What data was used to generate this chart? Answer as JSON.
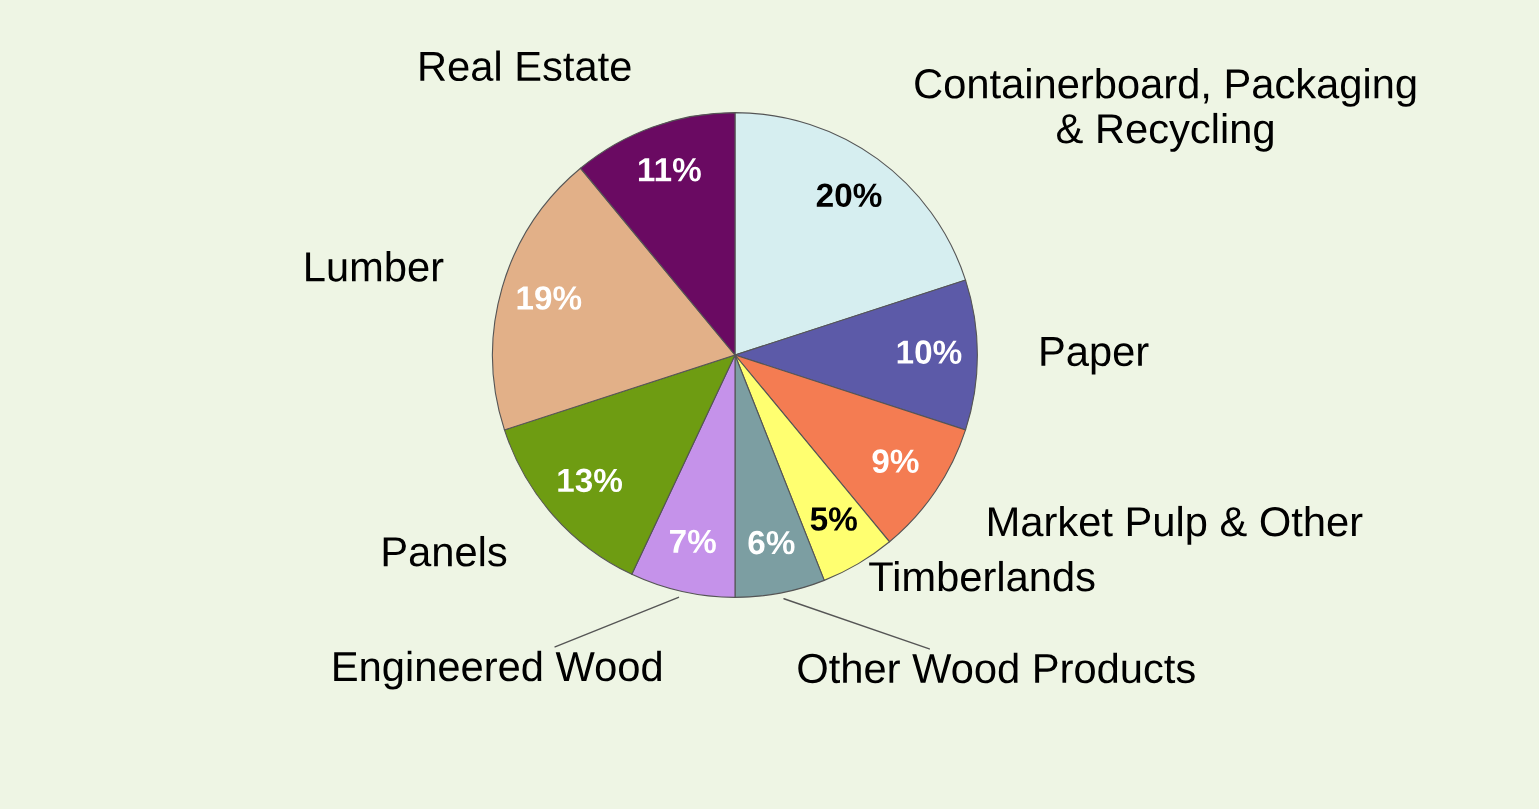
{
  "chart_data": {
    "type": "pie",
    "categories": [
      "Containerboard, Packaging\n& Recycling",
      "Paper",
      "Market Pulp & Other",
      "Timberlands",
      "Other Wood Products",
      "Engineered Wood",
      "Panels",
      "Lumber",
      "Real Estate"
    ],
    "values": [
      20,
      10,
      9,
      5,
      6,
      7,
      13,
      19,
      11
    ],
    "value_labels": [
      "20%",
      "10%",
      "9%",
      "5%",
      "6%",
      "7%",
      "13%",
      "19%",
      "11%"
    ],
    "colors": [
      "#d6eef0",
      "#5c5aa8",
      "#f47c52",
      "#ffff70",
      "#7c9ea2",
      "#c592ea",
      "#6e9c12",
      "#e2b088",
      "#6a0a62"
    ]
  }
}
